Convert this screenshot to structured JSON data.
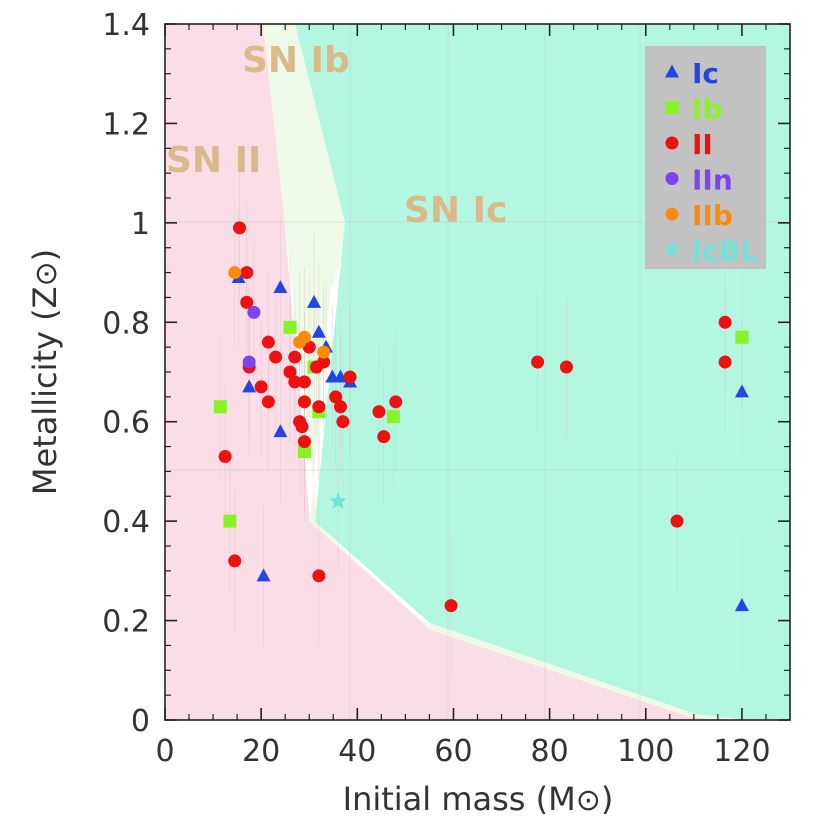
{
  "chart_data": {
    "type": "scatter",
    "title": "",
    "xlabel": "Initial mass (M",
    "ylabel": "Metallicity (Z",
    "label_symbol": "⊙",
    "xlim": [
      0,
      130
    ],
    "ylim": [
      0,
      1.4
    ],
    "x_ticks": [
      "0",
      "20",
      "40",
      "60",
      "80",
      "100",
      "120"
    ],
    "y_ticks": [
      "0",
      "0.2",
      "0.4",
      "0.6",
      "0.8",
      "1",
      "1.2",
      "1.4"
    ],
    "region_labels": [
      "SN  Ib",
      "SN  II",
      "SN  Ic"
    ],
    "colors": {
      "II_region": "#fbdde7",
      "Ib_region": "#eefae7",
      "Ic_region": "#b3f7e1",
      "legend_bg": "#c2c2c2",
      "label_tan": "#dab98d"
    },
    "legend_position": "top-right",
    "series": [
      {
        "name": "Ic",
        "marker": "triangle",
        "color": "#2146e2",
        "points": [
          [
            15.3,
            0.89
          ],
          [
            24,
            0.87
          ],
          [
            31,
            0.84
          ],
          [
            17.5,
            0.67
          ],
          [
            24,
            0.58
          ],
          [
            32,
            0.78
          ],
          [
            33.5,
            0.75
          ],
          [
            34.8,
            0.69
          ],
          [
            36.5,
            0.69
          ],
          [
            38.5,
            0.68
          ],
          [
            20.5,
            0.29
          ],
          [
            120,
            0.66
          ],
          [
            120,
            0.23
          ]
        ]
      },
      {
        "name": "Ib",
        "marker": "square",
        "color": "#86f227",
        "points": [
          [
            11.5,
            0.63
          ],
          [
            26,
            0.79
          ],
          [
            31,
            0.71
          ],
          [
            32,
            0.62
          ],
          [
            29,
            0.54
          ],
          [
            47.5,
            0.61
          ],
          [
            13.5,
            0.4
          ],
          [
            120,
            0.77
          ]
        ]
      },
      {
        "name": "II",
        "marker": "circle",
        "color": "#ee1111",
        "points": [
          [
            15.5,
            0.99
          ],
          [
            17,
            0.9
          ],
          [
            17,
            0.84
          ],
          [
            17.5,
            0.71
          ],
          [
            20,
            0.67
          ],
          [
            21.5,
            0.76
          ],
          [
            21.5,
            0.64
          ],
          [
            23,
            0.73
          ],
          [
            26,
            0.7
          ],
          [
            27,
            0.73
          ],
          [
            27,
            0.68
          ],
          [
            28,
            0.6
          ],
          [
            28.5,
            0.59
          ],
          [
            29,
            0.68
          ],
          [
            29,
            0.64
          ],
          [
            29,
            0.56
          ],
          [
            30,
            0.75
          ],
          [
            31.5,
            0.71
          ],
          [
            32,
            0.63
          ],
          [
            33,
            0.72
          ],
          [
            35.5,
            0.65
          ],
          [
            36.5,
            0.63
          ],
          [
            37,
            0.6
          ],
          [
            38.5,
            0.69
          ],
          [
            44.5,
            0.62
          ],
          [
            45.5,
            0.57
          ],
          [
            48,
            0.64
          ],
          [
            12.5,
            0.53
          ],
          [
            14.5,
            0.32
          ],
          [
            32,
            0.29
          ],
          [
            59.5,
            0.23
          ],
          [
            77.5,
            0.72
          ],
          [
            83.5,
            0.71
          ],
          [
            106.5,
            0.4
          ],
          [
            116.5,
            0.8
          ],
          [
            116.5,
            0.72
          ]
        ]
      },
      {
        "name": "IIn",
        "marker": "circle",
        "color": "#7d44ef",
        "points": [
          [
            18.5,
            0.82
          ],
          [
            17.5,
            0.72
          ]
        ]
      },
      {
        "name": "IIb",
        "marker": "circle",
        "color": "#fb8b0d",
        "points": [
          [
            14.5,
            0.9
          ],
          [
            28,
            0.76
          ],
          [
            29,
            0.77
          ],
          [
            33,
            0.74
          ]
        ]
      },
      {
        "name": "IcBL",
        "marker": "star",
        "color": "#6fe3d8",
        "points": [
          [
            36,
            0.44
          ]
        ]
      }
    ]
  }
}
